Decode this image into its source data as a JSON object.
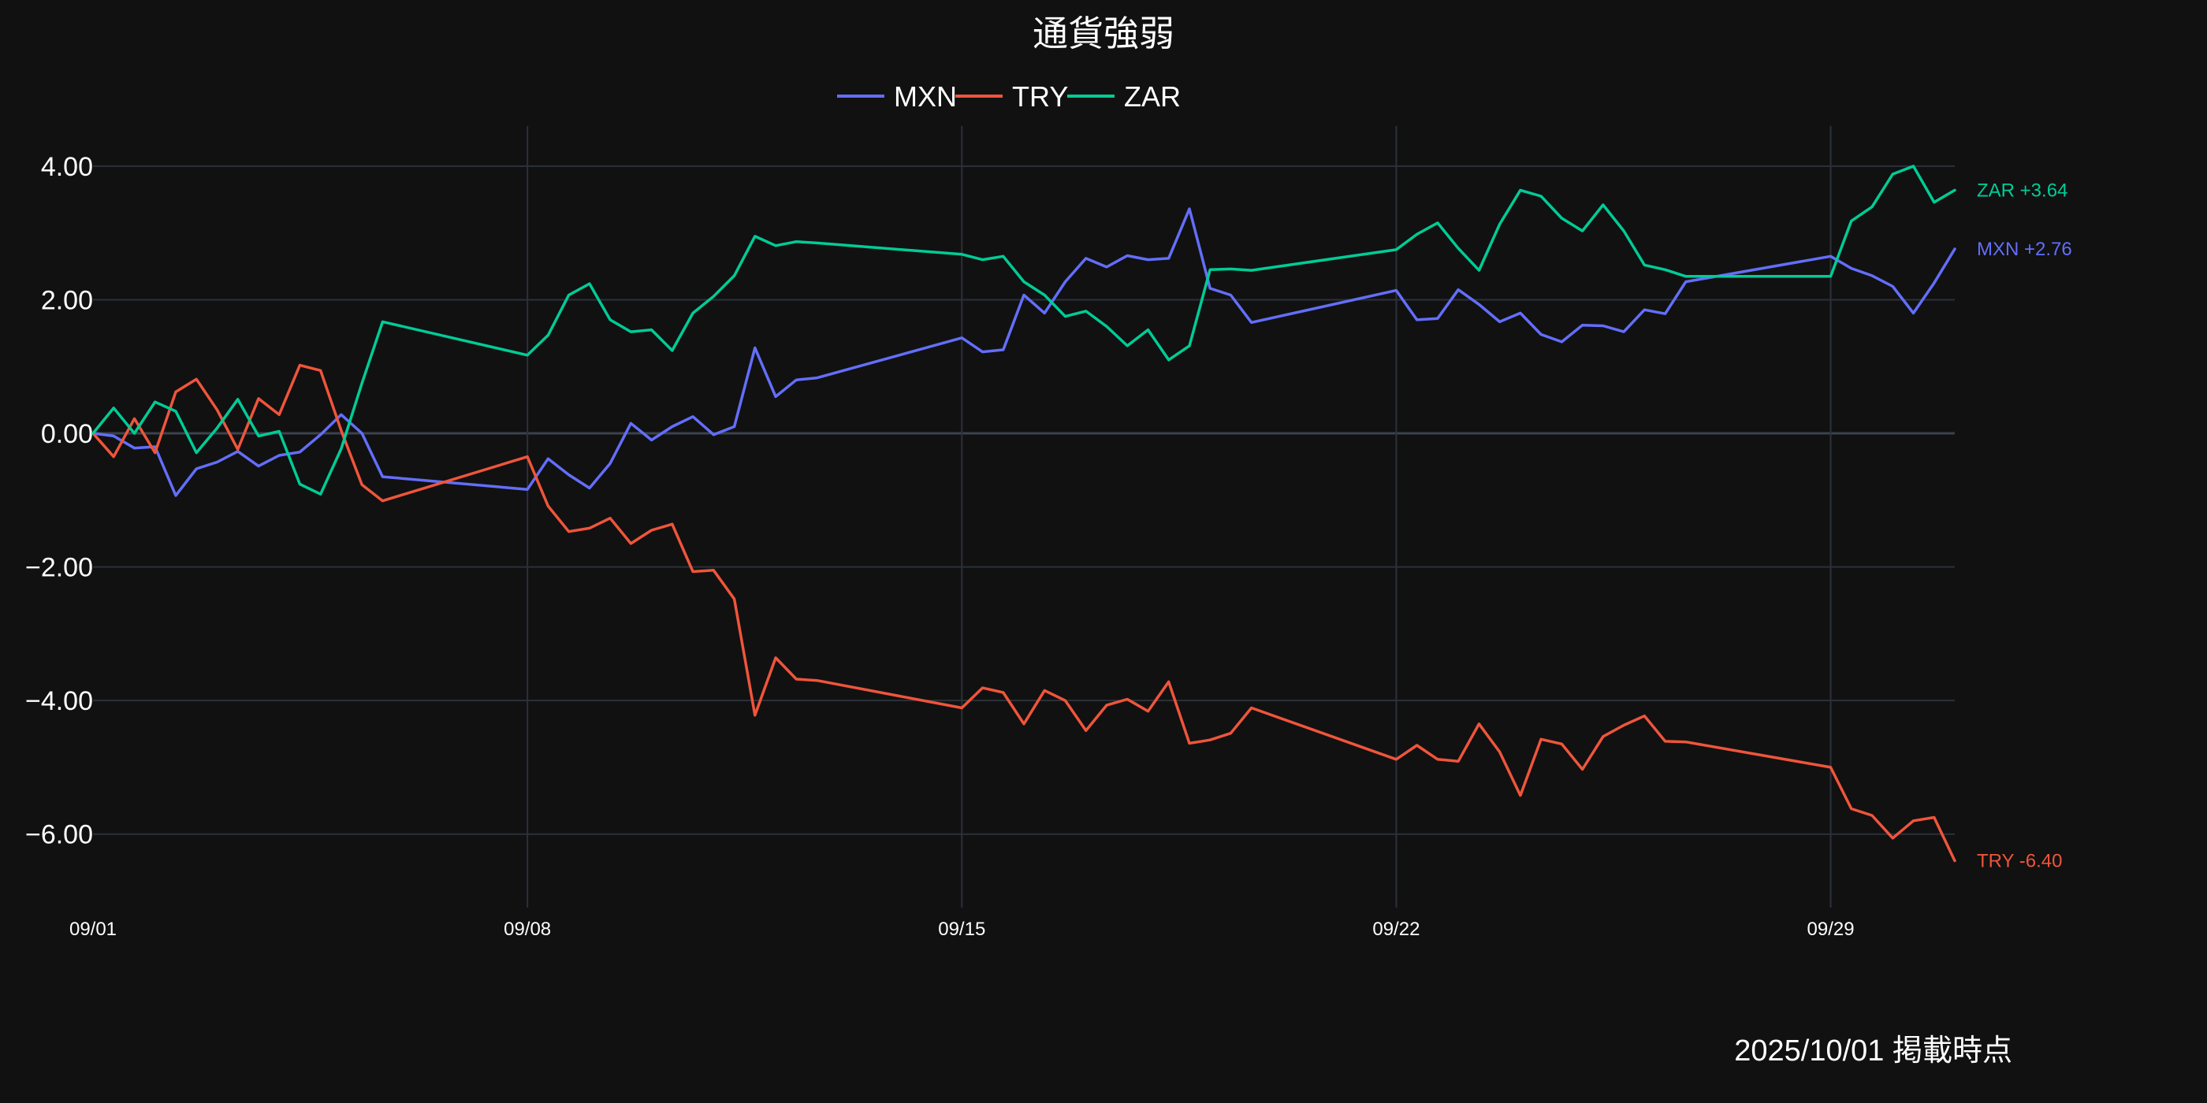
{
  "chart_data": {
    "type": "line",
    "title": "通貨強弱",
    "xlabel": "",
    "ylabel": "",
    "footnote": "2025/10/01 掲載時点",
    "x_range": [
      "2025-09-01T00:00",
      "2025-10-01T00:00"
    ],
    "ylim": [
      -7.1,
      4.6
    ],
    "y_ticks": [
      4,
      2,
      0,
      -2,
      -4,
      -6
    ],
    "y_tick_labels": [
      "4.00",
      "2.00",
      "0.00",
      "−2.00",
      "−4.00",
      "−6.00"
    ],
    "x_ticks": [
      "2025-09-01T00:00",
      "2025-09-08T00:00",
      "2025-09-15T00:00",
      "2025-09-22T00:00",
      "2025-09-29T00:00"
    ],
    "x_tick_labels": [
      "09/01",
      "09/08",
      "09/15",
      "09/22",
      "09/29"
    ],
    "grid": true,
    "legend_position": "top-center",
    "x": [
      "2025-09-01T00:00",
      "2025-09-01T08:00",
      "2025-09-01T16:00",
      "2025-09-02T00:00",
      "2025-09-02T08:00",
      "2025-09-02T16:00",
      "2025-09-03T00:00",
      "2025-09-03T08:00",
      "2025-09-03T16:00",
      "2025-09-04T00:00",
      "2025-09-04T08:00",
      "2025-09-04T16:00",
      "2025-09-05T00:00",
      "2025-09-05T08:00",
      "2025-09-05T16:00",
      "2025-09-08T00:00",
      "2025-09-08T08:00",
      "2025-09-08T16:00",
      "2025-09-09T00:00",
      "2025-09-09T08:00",
      "2025-09-09T16:00",
      "2025-09-10T00:00",
      "2025-09-10T08:00",
      "2025-09-10T16:00",
      "2025-09-11T00:00",
      "2025-09-11T08:00",
      "2025-09-11T16:00",
      "2025-09-12T00:00",
      "2025-09-12T08:00",
      "2025-09-12T16:00",
      "2025-09-15T00:00",
      "2025-09-15T08:00",
      "2025-09-15T16:00",
      "2025-09-16T00:00",
      "2025-09-16T08:00",
      "2025-09-16T16:00",
      "2025-09-17T00:00",
      "2025-09-17T08:00",
      "2025-09-17T16:00",
      "2025-09-18T00:00",
      "2025-09-18T08:00",
      "2025-09-18T16:00",
      "2025-09-19T00:00",
      "2025-09-19T08:00",
      "2025-09-19T16:00",
      "2025-09-22T00:00",
      "2025-09-22T08:00",
      "2025-09-22T16:00",
      "2025-09-23T00:00",
      "2025-09-23T08:00",
      "2025-09-23T16:00",
      "2025-09-24T00:00",
      "2025-09-24T08:00",
      "2025-09-24T16:00",
      "2025-09-25T00:00",
      "2025-09-25T08:00",
      "2025-09-25T16:00",
      "2025-09-26T00:00",
      "2025-09-26T08:00",
      "2025-09-26T16:00",
      "2025-09-29T00:00",
      "2025-09-29T08:00",
      "2025-09-29T16:00",
      "2025-09-30T00:00",
      "2025-09-30T08:00",
      "2025-09-30T16:00",
      "2025-10-01T00:00"
    ],
    "series": [
      {
        "name": "MXN",
        "color": "#636efa",
        "end_label": "MXN +2.76",
        "values": [
          0,
          -0.04,
          -0.22,
          -0.2,
          -0.93,
          -0.53,
          -0.43,
          -0.27,
          -0.49,
          -0.33,
          -0.28,
          -0.02,
          0.28,
          0,
          -0.65,
          -0.84,
          -0.38,
          -0.62,
          -0.82,
          -0.45,
          0.15,
          -0.1,
          0.1,
          0.25,
          -0.02,
          0.1,
          1.28,
          0.55,
          0.8,
          0.83,
          1.43,
          1.22,
          1.25,
          2.07,
          1.8,
          2.27,
          2.62,
          2.49,
          2.66,
          2.6,
          2.62,
          3.36,
          2.17,
          2.07,
          1.66,
          2.14,
          1.7,
          1.72,
          2.15,
          1.93,
          1.67,
          1.8,
          1.48,
          1.37,
          1.62,
          1.61,
          1.52,
          1.85,
          1.79,
          2.27,
          2.65,
          2.47,
          2.36,
          2.2,
          1.8,
          2.25,
          2.76
        ]
      },
      {
        "name": "TRY",
        "color": "#ef553b",
        "end_label": "TRY -6.40",
        "values": [
          0,
          -0.35,
          0.22,
          -0.29,
          0.62,
          0.81,
          0.35,
          -0.24,
          0.52,
          0.28,
          1.02,
          0.94,
          0.04,
          -0.77,
          -1.01,
          -0.35,
          -1.09,
          -1.47,
          -1.42,
          -1.27,
          -1.65,
          -1.45,
          -1.36,
          -2.07,
          -2.05,
          -2.48,
          -4.22,
          -3.36,
          -3.68,
          -3.7,
          -4.11,
          -3.81,
          -3.88,
          -4.35,
          -3.85,
          -4.0,
          -4.45,
          -4.07,
          -3.98,
          -4.16,
          -3.72,
          -4.64,
          -4.59,
          -4.49,
          -4.11,
          -4.88,
          -4.67,
          -4.88,
          -4.91,
          -4.35,
          -4.77,
          -5.42,
          -4.58,
          -4.65,
          -5.03,
          -4.54,
          -4.37,
          -4.23,
          -4.61,
          -4.62,
          -5.0,
          -5.62,
          -5.72,
          -6.06,
          -5.8,
          -5.75,
          -6.4
        ]
      },
      {
        "name": "ZAR",
        "color": "#00cc96",
        "end_label": "ZAR +3.64",
        "values": [
          0,
          0.38,
          0,
          0.47,
          0.33,
          -0.29,
          0.08,
          0.51,
          -0.04,
          0.03,
          -0.76,
          -0.91,
          -0.23,
          0.75,
          1.67,
          1.17,
          1.47,
          2.07,
          2.24,
          1.7,
          1.52,
          1.55,
          1.24,
          1.8,
          2.05,
          2.36,
          2.95,
          2.81,
          2.87,
          2.85,
          2.68,
          2.6,
          2.65,
          2.27,
          2.07,
          1.75,
          1.83,
          1.6,
          1.31,
          1.55,
          1.1,
          1.31,
          2.45,
          2.46,
          2.44,
          2.75,
          2.98,
          3.15,
          2.77,
          2.44,
          3.13,
          3.64,
          3.55,
          3.22,
          3.03,
          3.42,
          3.03,
          2.52,
          2.45,
          2.35,
          2.35,
          3.18,
          3.39,
          3.88,
          4.0,
          3.46,
          3.64
        ]
      }
    ]
  }
}
